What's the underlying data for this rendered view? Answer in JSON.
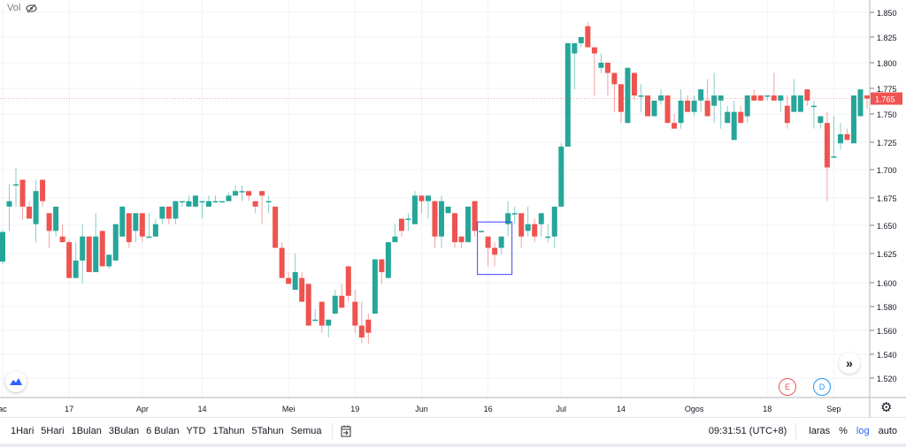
{
  "header": {
    "vol_label": "Vol",
    "vol_icon": "eye-slash-icon"
  },
  "chart_data": {
    "type": "candlestick",
    "scale": "log",
    "grid": true,
    "colors": {
      "up": "#26a69a",
      "down": "#ef5350",
      "last_price_bg": "#ef5350",
      "annotation_box": "#3f3fff"
    },
    "last_price": "1.765",
    "y_ticks": [
      "1.850",
      "1.825",
      "1.800",
      "1.775",
      "1.750",
      "1.725",
      "1.700",
      "1.675",
      "1.650",
      "1.625",
      "1.600",
      "1.580",
      "1.560",
      "1.540",
      "1.520"
    ],
    "x_ticks": [
      {
        "label": "ac",
        "bar": 0
      },
      {
        "label": "17",
        "bar": 10
      },
      {
        "label": "Apr",
        "bar": 21
      },
      {
        "label": "14",
        "bar": 30
      },
      {
        "label": "Mei",
        "bar": 43
      },
      {
        "label": "19",
        "bar": 53
      },
      {
        "label": "Jun",
        "bar": 63
      },
      {
        "label": "16",
        "bar": 73
      },
      {
        "label": "Jul",
        "bar": 84
      },
      {
        "label": "14",
        "bar": 93
      },
      {
        "label": "Ogos",
        "bar": 104
      },
      {
        "label": "18",
        "bar": 115
      },
      {
        "label": "Sep",
        "bar": 125
      }
    ],
    "annotation_box_bars": [
      72,
      76
    ],
    "annotation_box_prices": [
      1.653,
      1.607
    ],
    "ohlc": [
      [
        1.618,
        1.646,
        1.616,
        1.644
      ],
      [
        1.667,
        1.687,
        1.645,
        1.672
      ],
      [
        1.686,
        1.702,
        1.667,
        1.687
      ],
      [
        1.691,
        1.691,
        1.655,
        1.667
      ],
      [
        1.667,
        1.672,
        1.656,
        1.656
      ],
      [
        1.651,
        1.691,
        1.635,
        1.681
      ],
      [
        1.691,
        1.691,
        1.667,
        1.672
      ],
      [
        1.661,
        1.661,
        1.63,
        1.645
      ],
      [
        1.645,
        1.667,
        1.64,
        1.667
      ],
      [
        1.64,
        1.651,
        1.635,
        1.635
      ],
      [
        1.635,
        1.637,
        1.604,
        1.604
      ],
      [
        1.604,
        1.635,
        1.604,
        1.619
      ],
      [
        1.619,
        1.651,
        1.599,
        1.64
      ],
      [
        1.64,
        1.64,
        1.609,
        1.609
      ],
      [
        1.609,
        1.661,
        1.609,
        1.64
      ],
      [
        1.645,
        1.645,
        1.614,
        1.614
      ],
      [
        1.614,
        1.624,
        1.612,
        1.624
      ],
      [
        1.619,
        1.651,
        1.619,
        1.651
      ],
      [
        1.64,
        1.667,
        1.64,
        1.667
      ],
      [
        1.661,
        1.661,
        1.63,
        1.635
      ],
      [
        1.645,
        1.661,
        1.635,
        1.661
      ],
      [
        1.661,
        1.661,
        1.635,
        1.64
      ],
      [
        1.64,
        1.661,
        1.64,
        1.64
      ],
      [
        1.64,
        1.656,
        1.64,
        1.651
      ],
      [
        1.656,
        1.667,
        1.651,
        1.667
      ],
      [
        1.667,
        1.667,
        1.651,
        1.656
      ],
      [
        1.656,
        1.672,
        1.651,
        1.672
      ],
      [
        1.672,
        1.672,
        1.667,
        1.672
      ],
      [
        1.667,
        1.677,
        1.667,
        1.672
      ],
      [
        1.667,
        1.677,
        1.667,
        1.677
      ],
      [
        1.672,
        1.672,
        1.656,
        1.672
      ],
      [
        1.667,
        1.677,
        1.667,
        1.672
      ],
      [
        1.672,
        1.677,
        1.672,
        1.672
      ],
      [
        1.672,
        1.672,
        1.672,
        1.672
      ],
      [
        1.672,
        1.68,
        1.672,
        1.677
      ],
      [
        1.677,
        1.686,
        1.677,
        1.681
      ],
      [
        1.681,
        1.686,
        1.672,
        1.681
      ],
      [
        1.681,
        1.681,
        1.672,
        1.677
      ],
      [
        1.672,
        1.672,
        1.661,
        1.667
      ],
      [
        1.681,
        1.681,
        1.651,
        1.677
      ],
      [
        1.672,
        1.677,
        1.661,
        1.672
      ],
      [
        1.667,
        1.667,
        1.63,
        1.63
      ],
      [
        1.63,
        1.635,
        1.604,
        1.604
      ],
      [
        1.604,
        1.609,
        1.599,
        1.599
      ],
      [
        1.594,
        1.625,
        1.594,
        1.609
      ],
      [
        1.604,
        1.609,
        1.584,
        1.584
      ],
      [
        1.599,
        1.599,
        1.564,
        1.564
      ],
      [
        1.569,
        1.578,
        1.569,
        1.569
      ],
      [
        1.584,
        1.584,
        1.558,
        1.564
      ],
      [
        1.564,
        1.569,
        1.554,
        1.569
      ],
      [
        1.574,
        1.594,
        1.574,
        1.589
      ],
      [
        1.589,
        1.599,
        1.579,
        1.579
      ],
      [
        1.614,
        1.614,
        1.584,
        1.589
      ],
      [
        1.584,
        1.594,
        1.558,
        1.564
      ],
      [
        1.564,
        1.584,
        1.549,
        1.554
      ],
      [
        1.569,
        1.574,
        1.549,
        1.558
      ],
      [
        1.574,
        1.62,
        1.574,
        1.62
      ],
      [
        1.62,
        1.62,
        1.599,
        1.609
      ],
      [
        1.604,
        1.635,
        1.604,
        1.635
      ],
      [
        1.635,
        1.651,
        1.635,
        1.64
      ],
      [
        1.656,
        1.656,
        1.64,
        1.645
      ],
      [
        1.656,
        1.661,
        1.645,
        1.656
      ],
      [
        1.651,
        1.681,
        1.651,
        1.677
      ],
      [
        1.677,
        1.677,
        1.661,
        1.672
      ],
      [
        1.672,
        1.677,
        1.656,
        1.677
      ],
      [
        1.672,
        1.672,
        1.63,
        1.64
      ],
      [
        1.64,
        1.677,
        1.63,
        1.672
      ],
      [
        1.661,
        1.667,
        1.661,
        1.667
      ],
      [
        1.661,
        1.661,
        1.63,
        1.635
      ],
      [
        1.64,
        1.64,
        1.63,
        1.635
      ],
      [
        1.635,
        1.667,
        1.635,
        1.667
      ],
      [
        1.672,
        1.672,
        1.64,
        1.645
      ],
      [
        1.645,
        1.645,
        1.645,
        1.645
      ],
      [
        1.64,
        1.64,
        1.614,
        1.63
      ],
      [
        1.63,
        1.635,
        1.614,
        1.624
      ],
      [
        1.63,
        1.64,
        1.624,
        1.64
      ],
      [
        1.651,
        1.672,
        1.64,
        1.661
      ],
      [
        1.661,
        1.667,
        1.651,
        1.661
      ],
      [
        1.661,
        1.661,
        1.63,
        1.64
      ],
      [
        1.645,
        1.667,
        1.64,
        1.651
      ],
      [
        1.651,
        1.656,
        1.635,
        1.64
      ],
      [
        1.651,
        1.661,
        1.64,
        1.661
      ],
      [
        1.64,
        1.651,
        1.635,
        1.64
      ],
      [
        1.64,
        1.667,
        1.63,
        1.667
      ],
      [
        1.667,
        1.724,
        1.667,
        1.721
      ],
      [
        1.721,
        1.819,
        1.721,
        1.819
      ],
      [
        1.809,
        1.819,
        1.774,
        1.819
      ],
      [
        1.819,
        1.825,
        1.815,
        1.825
      ],
      [
        1.836,
        1.84,
        1.815,
        1.815
      ],
      [
        1.815,
        1.815,
        1.768,
        1.809
      ],
      [
        1.795,
        1.809,
        1.79,
        1.8
      ],
      [
        1.8,
        1.8,
        1.768,
        1.79
      ],
      [
        1.79,
        1.79,
        1.752,
        1.779
      ],
      [
        1.779,
        1.779,
        1.742,
        1.752
      ],
      [
        1.742,
        1.795,
        1.742,
        1.795
      ],
      [
        1.79,
        1.79,
        1.763,
        1.768
      ],
      [
        1.768,
        1.779,
        1.752,
        1.768
      ],
      [
        1.768,
        1.768,
        1.748,
        1.748
      ],
      [
        1.748,
        1.763,
        1.748,
        1.763
      ],
      [
        1.763,
        1.774,
        1.759,
        1.768
      ],
      [
        1.768,
        1.768,
        1.742,
        1.742
      ],
      [
        1.742,
        1.75,
        1.737,
        1.737
      ],
      [
        1.742,
        1.774,
        1.737,
        1.763
      ],
      [
        1.763,
        1.768,
        1.752,
        1.752
      ],
      [
        1.752,
        1.768,
        1.748,
        1.763
      ],
      [
        1.763,
        1.774,
        1.752,
        1.774
      ],
      [
        1.763,
        1.784,
        1.748,
        1.748
      ],
      [
        1.758,
        1.79,
        1.742,
        1.768
      ],
      [
        1.763,
        1.768,
        1.737,
        1.768
      ],
      [
        1.742,
        1.758,
        1.742,
        1.752
      ],
      [
        1.727,
        1.763,
        1.727,
        1.752
      ],
      [
        1.752,
        1.758,
        1.742,
        1.742
      ],
      [
        1.748,
        1.768,
        1.742,
        1.768
      ],
      [
        1.768,
        1.774,
        1.763,
        1.763
      ],
      [
        1.768,
        1.768,
        1.763,
        1.763
      ],
      [
        1.768,
        1.768,
        1.763,
        1.768
      ],
      [
        1.768,
        1.79,
        1.763,
        1.763
      ],
      [
        1.763,
        1.768,
        1.752,
        1.768
      ],
      [
        1.758,
        1.768,
        1.737,
        1.742
      ],
      [
        1.752,
        1.784,
        1.752,
        1.768
      ],
      [
        1.752,
        1.768,
        1.752,
        1.768
      ],
      [
        1.774,
        1.774,
        1.758,
        1.763
      ],
      [
        1.758,
        1.763,
        1.737,
        1.758
      ],
      [
        1.742,
        1.748,
        1.737,
        1.748
      ],
      [
        1.742,
        1.752,
        1.672,
        1.702
      ],
      [
        1.712,
        1.748,
        1.712,
        1.712
      ],
      [
        1.724,
        1.742,
        1.718,
        1.732
      ],
      [
        1.732,
        1.737,
        1.727,
        1.727
      ],
      [
        1.724,
        1.768,
        1.724,
        1.768
      ],
      [
        1.748,
        1.774,
        1.748,
        1.774
      ],
      [
        1.768,
        1.768,
        1.755,
        1.765
      ]
    ]
  },
  "markers": {
    "earnings": "E",
    "dividend": "D"
  },
  "toolbar": {
    "ranges": [
      "1Hari",
      "5Hari",
      "1Bulan",
      "3Bulan",
      "6 Bulan",
      "YTD",
      "1Tahun",
      "5Tahun",
      "Semua"
    ],
    "time": "09:31:51 (UTC+8)",
    "laras": "laras",
    "percent": "%",
    "log": "log",
    "auto": "auto"
  }
}
